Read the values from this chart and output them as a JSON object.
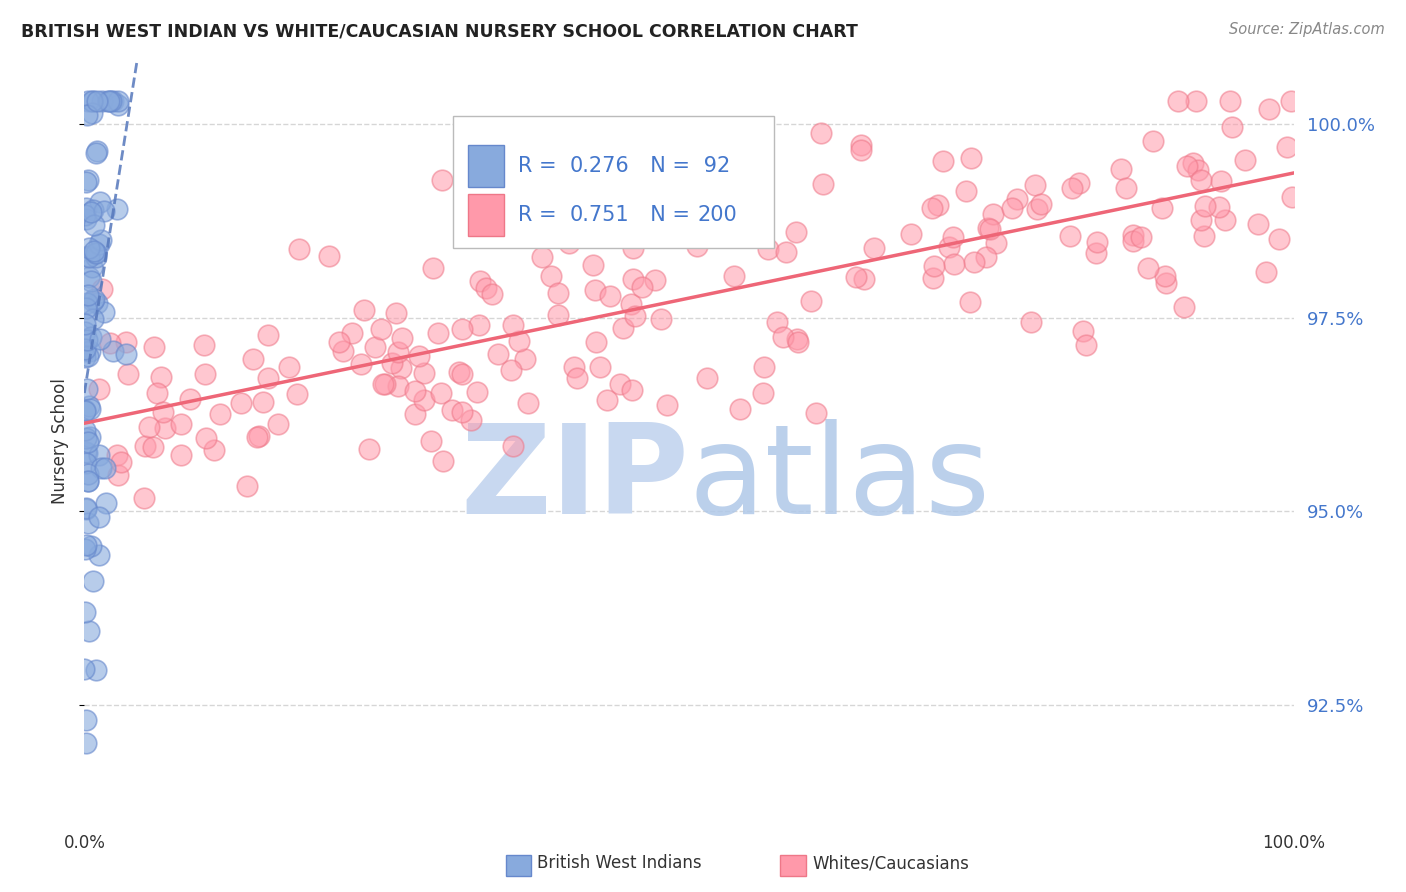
{
  "title": "BRITISH WEST INDIAN VS WHITE/CAUCASIAN NURSERY SCHOOL CORRELATION CHART",
  "source": "Source: ZipAtlas.com",
  "ylabel": "Nursery School",
  "ytick_labels": [
    "92.5%",
    "95.0%",
    "97.5%",
    "100.0%"
  ],
  "ytick_values": [
    0.925,
    0.95,
    0.975,
    1.0
  ],
  "ylim": [
    0.91,
    1.008
  ],
  "xlim": [
    0.0,
    1.0
  ],
  "legend_blue_R": 0.276,
  "legend_blue_N": 92,
  "legend_pink_R": 0.751,
  "legend_pink_N": 200,
  "blue_color": "#88AADD",
  "pink_color": "#FF99AA",
  "blue_edge_color": "#6688CC",
  "pink_edge_color": "#EE7788",
  "blue_line_color": "#5577BB",
  "pink_line_color": "#EE6677",
  "legend_text_color": "#4477CC",
  "label_color": "#4477CC",
  "watermark_zip_color": "#C8D8F0",
  "watermark_atlas_color": "#B0C8E8",
  "background_color": "#FFFFFF",
  "grid_color": "#CCCCCC",
  "title_color": "#222222",
  "source_color": "#888888",
  "axis_label_color": "#333333"
}
